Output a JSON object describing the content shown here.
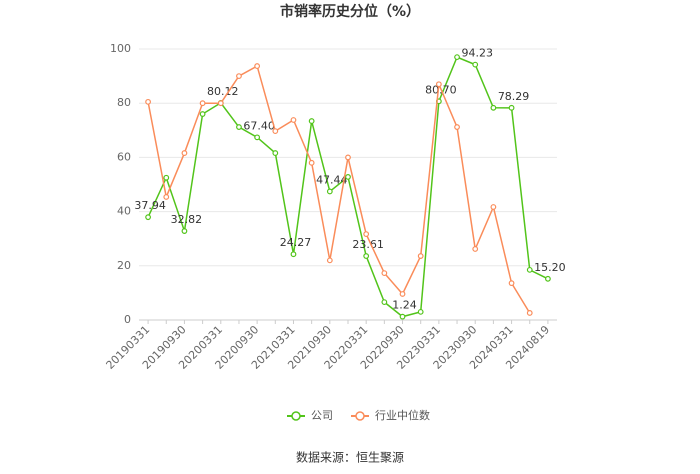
{
  "chart_data": {
    "type": "line",
    "title": "市销率历史分位（%）",
    "categories": [
      "20190331",
      null,
      "20190930",
      null,
      "20200331",
      null,
      "20200930",
      null,
      "20210331",
      null,
      "20210930",
      null,
      "20220331",
      null,
      "20220930",
      null,
      "20230331",
      null,
      "20230930",
      null,
      "20240331",
      null,
      "20240819"
    ],
    "series": [
      {
        "name": "公司",
        "color": "#52c41a",
        "values": [
          37.94,
          52.5,
          32.82,
          76,
          80.12,
          71.2,
          67.4,
          61.6,
          24.27,
          73.4,
          47.44,
          52.8,
          23.61,
          6.6,
          1.24,
          3.0,
          80.7,
          97,
          94.23,
          78.3,
          78.29,
          18.5,
          15.2
        ],
        "value_labels": [
          "37.94",
          null,
          "32.82",
          null,
          "80.12",
          null,
          "67.40",
          null,
          "24.27",
          null,
          "47.44",
          null,
          "23.61",
          null,
          "1.24",
          null,
          "80.70",
          null,
          "94.23",
          null,
          "78.29",
          null,
          "15.20"
        ]
      },
      {
        "name": "行业中位数",
        "color": "#fa8c5a",
        "values": [
          80.5,
          45.4,
          61.6,
          80,
          80,
          90,
          93.7,
          69.7,
          73.8,
          58,
          22,
          60,
          31.7,
          17.3,
          9.6,
          23.6,
          87,
          71.2,
          26.2,
          41.7,
          13.6,
          2.6,
          null
        ]
      }
    ],
    "ylim": [
      0,
      100
    ],
    "yticks": [
      0,
      20,
      40,
      60,
      80,
      100
    ],
    "grid": true,
    "source": "数据来源：恒生聚源"
  }
}
